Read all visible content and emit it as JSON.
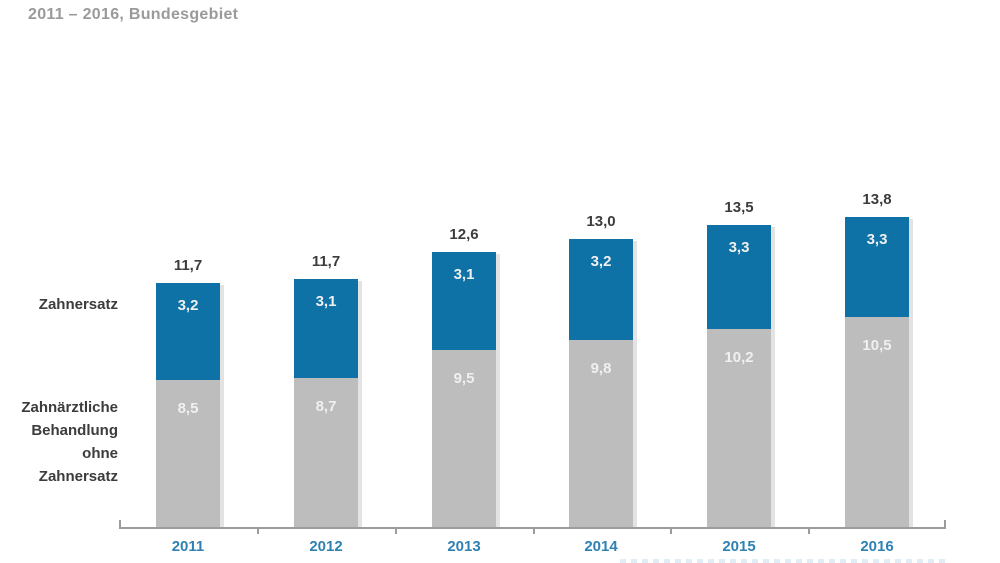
{
  "page": {
    "subtitle": "2011 – 2016, Bundesgebiet"
  },
  "left_labels": {
    "zahnersatz": "Zahnersatz",
    "behandlung_lines": [
      "Zahnärztliche",
      "Behandlung",
      "ohne",
      "Zahnersatz"
    ]
  },
  "colors": {
    "bar_blue": "#0e72a6",
    "bar_gray": "#bdbdbd",
    "bar_shadow": "#e3e3e3",
    "year_label_blue": "#2f81b3",
    "axis_gray": "#9c9c9c",
    "subtitle_gray": "#9a9a9a",
    "dark_text": "#3c3c3c",
    "segment_label_text": "#f0f0f0"
  },
  "chart_data": {
    "type": "bar",
    "stacked": true,
    "title": "",
    "subtitle": "2011 – 2016, Bundesgebiet",
    "xlabel": "",
    "ylabel": "",
    "grid": false,
    "legend_position": "left",
    "value_decimal_separator": ",",
    "categories": [
      "2011",
      "2012",
      "2013",
      "2014",
      "2015",
      "2016"
    ],
    "series": [
      {
        "name": "Zahnärztliche Behandlung ohne Zahnersatz",
        "color": "#bdbdbd",
        "values": [
          8.5,
          8.7,
          9.5,
          9.8,
          10.2,
          10.5
        ],
        "value_labels": [
          "8,5",
          "8,7",
          "9,5",
          "9,8",
          "10,2",
          "10,5"
        ]
      },
      {
        "name": "Zahnersatz",
        "color": "#0e72a6",
        "values": [
          3.2,
          3.1,
          3.1,
          3.2,
          3.3,
          3.3
        ],
        "value_labels": [
          "3,2",
          "3,1",
          "3,1",
          "3,2",
          "3,3",
          "3,3"
        ]
      }
    ],
    "totals": [
      11.7,
      11.7,
      12.6,
      13.0,
      13.5,
      13.8
    ],
    "total_labels": [
      "11,7",
      "11,7",
      "12,6",
      "13,0",
      "13,5",
      "13,8"
    ]
  }
}
